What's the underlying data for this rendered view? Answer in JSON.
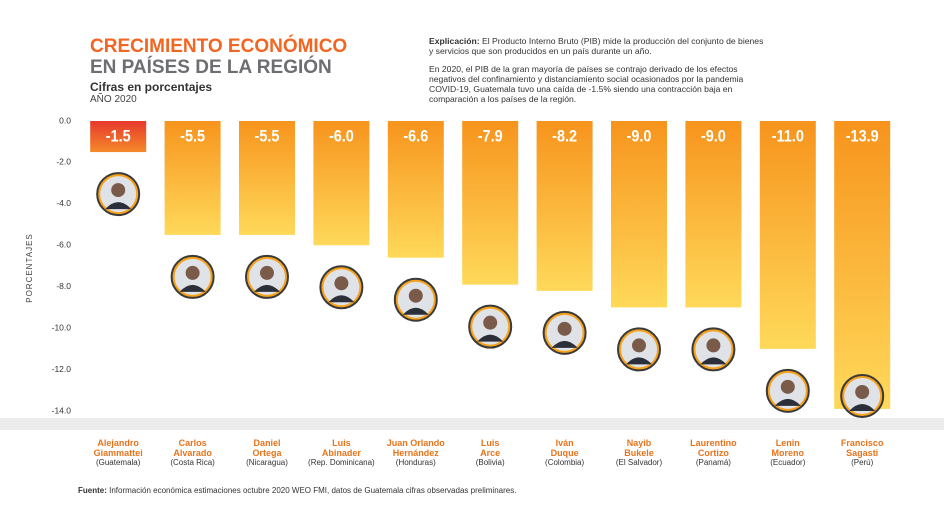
{
  "chart_data": {
    "type": "bar",
    "title": [
      "CRECIMIENTO ECONÓMICO",
      "EN PAÍSES DE LA REGIÓN"
    ],
    "subtitle": "Cifras en porcentajes",
    "year": "AÑO 2020",
    "explanation": {
      "label": "Explicación:",
      "paragraphs": [
        "El Producto Interno Bruto (PIB) mide la producción del conjunto de bienes y servicios que son producidos en un país durante un año.",
        "En 2020, el PIB de la gran mayoría de países se contrajo derivado de los efectos negativos del confinamiento y distanciamiento social ocasionados por la pandemia COVID-19, Guatemala tuvo una caída de -1.5% siendo una contracción baja en comparación a los países de la región."
      ]
    },
    "ylabel": "PORCENTAJES",
    "categories": [
      [
        "Alejandro",
        "Giammattei"
      ],
      [
        "Carlos",
        "Alvarado"
      ],
      [
        "Daniel",
        "Ortega"
      ],
      [
        "Luis",
        "Abinader"
      ],
      [
        "Juan Orlando",
        "Hernández"
      ],
      [
        "Luis",
        "Arce"
      ],
      [
        "Iván",
        "Duque"
      ],
      [
        "Nayib",
        "Bukele"
      ],
      [
        "Laurentino",
        "Cortizo"
      ],
      [
        "Lenin",
        "Moreno"
      ],
      [
        "Francisco",
        "Sagasti"
      ]
    ],
    "countries": [
      "(Guatemala)",
      "(Costa Rica)",
      "(Nicaragua)",
      "(Rep. Dominicana)",
      "(Honduras)",
      "(Bolivia)",
      "(Colombia)",
      "(El Salvador)",
      "(Panamá)",
      "(Ecuador)",
      "(Perú)"
    ],
    "values": [
      -1.5,
      -5.5,
      -5.5,
      -6,
      -6.6,
      -7.9,
      -8.2,
      -9,
      -9,
      -11,
      -13.9
    ],
    "value_labels": [
      "-1.5",
      "-5.5",
      "-5.5",
      "-6.0",
      "-6.6",
      "-7.9",
      "-8.2",
      "-9.0",
      "-9.0",
      "-11.0",
      "-13.9"
    ],
    "colors": [
      "red",
      "orange",
      "orange",
      "orange",
      "orange",
      "orange",
      "orange",
      "orange",
      "orange",
      "orange",
      "orange"
    ],
    "ylim": [
      -14,
      0
    ],
    "yticks": [
      {
        "value": 0,
        "label": "0.0"
      },
      {
        "value": -2,
        "label": "-2.0"
      },
      {
        "value": -4,
        "label": "-4.0"
      },
      {
        "value": -6,
        "label": "-6.0"
      },
      {
        "value": -8,
        "label": "-8.0"
      },
      {
        "value": -10,
        "label": "-10.0"
      },
      {
        "value": -12,
        "label": "-12.0"
      },
      {
        "value": -14,
        "label": "-14.0"
      }
    ],
    "source": {
      "label": "Fuente:",
      "text": "Información económica estimaciones octubre 2020 WEO FMI, datos de Guatemala cifras observadas preliminares."
    }
  }
}
